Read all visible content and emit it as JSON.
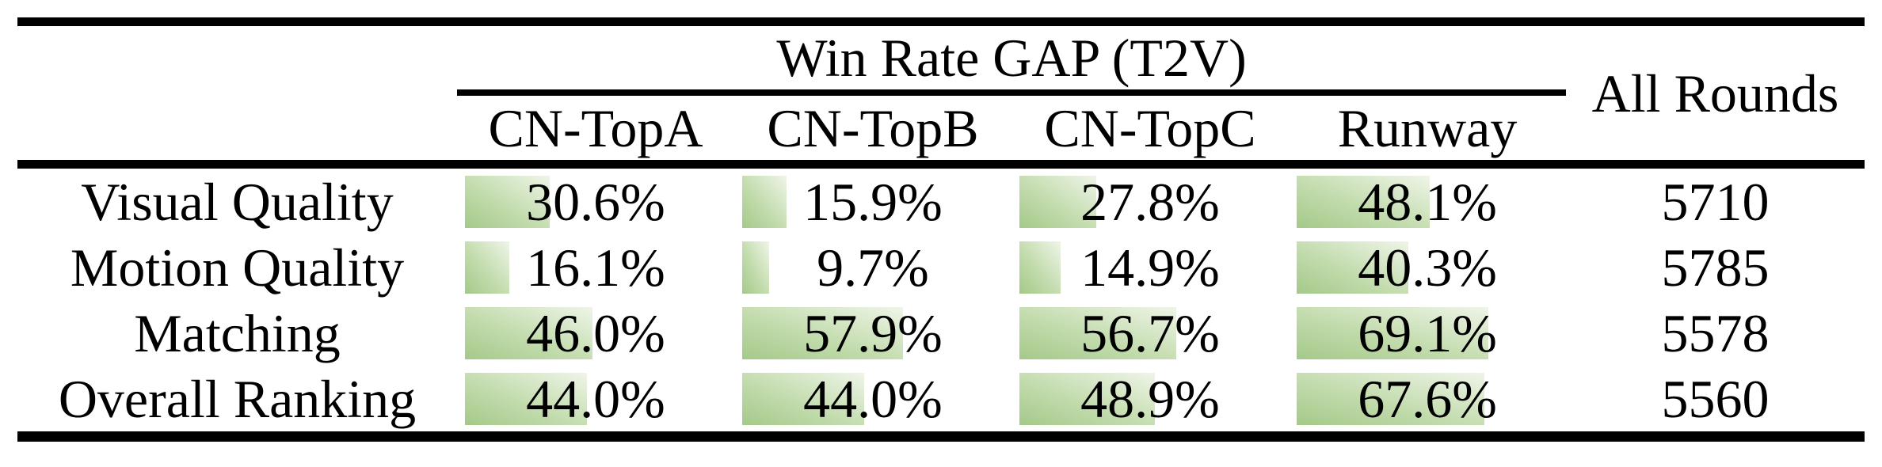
{
  "table": {
    "title": "Win Rate GAP (T2V)",
    "all_rounds_header": "All Rounds",
    "columns": [
      "CN-TopA",
      "CN-TopB",
      "CN-TopC",
      "Runway"
    ],
    "rows": [
      {
        "label": "Visual Quality",
        "values": [
          "30.6%",
          "15.9%",
          "27.8%",
          "48.1%"
        ],
        "pcts": [
          30.6,
          15.9,
          27.8,
          48.1
        ],
        "all_rounds": "5710"
      },
      {
        "label": "Motion Quality",
        "values": [
          "16.1%",
          "9.7%",
          "14.9%",
          "40.3%"
        ],
        "pcts": [
          16.1,
          9.7,
          14.9,
          40.3
        ],
        "all_rounds": "5785"
      },
      {
        "label": "Matching",
        "values": [
          "46.0%",
          "57.9%",
          "56.7%",
          "69.1%"
        ],
        "pcts": [
          46.0,
          57.9,
          56.7,
          69.1
        ],
        "all_rounds": "5578"
      },
      {
        "label": "Overall Ranking",
        "values": [
          "44.0%",
          "44.0%",
          "48.9%",
          "67.6%"
        ],
        "pcts": [
          44.0,
          44.0,
          48.9,
          67.6
        ],
        "all_rounds": "5560"
      }
    ]
  },
  "chart_data": {
    "type": "table",
    "title": "Win Rate GAP (T2V)",
    "columns": [
      "CN-TopA",
      "CN-TopB",
      "CN-TopC",
      "Runway",
      "All Rounds"
    ],
    "row_labels": [
      "Visual Quality",
      "Motion Quality",
      "Matching",
      "Overall Ranking"
    ],
    "series": [
      {
        "name": "CN-TopA",
        "values": [
          30.6,
          16.1,
          46.0,
          44.0
        ],
        "unit": "%"
      },
      {
        "name": "CN-TopB",
        "values": [
          15.9,
          9.7,
          57.9,
          44.0
        ],
        "unit": "%"
      },
      {
        "name": "CN-TopC",
        "values": [
          27.8,
          14.9,
          56.7,
          48.9
        ],
        "unit": "%"
      },
      {
        "name": "Runway",
        "values": [
          48.1,
          40.3,
          69.1,
          67.6
        ],
        "unit": "%"
      },
      {
        "name": "All Rounds",
        "values": [
          5710,
          5785,
          5578,
          5560
        ],
        "unit": "count"
      }
    ],
    "bar_style": "left-aligned green gradient data bars inside cells, width proportional to percentage value"
  },
  "colors": {
    "bar_green": "#a4c989",
    "bar_mid": "#c3dcae",
    "bar_fade": "#eff5e8",
    "rule": "#000000",
    "background": "#ffffff",
    "text": "#000000"
  }
}
